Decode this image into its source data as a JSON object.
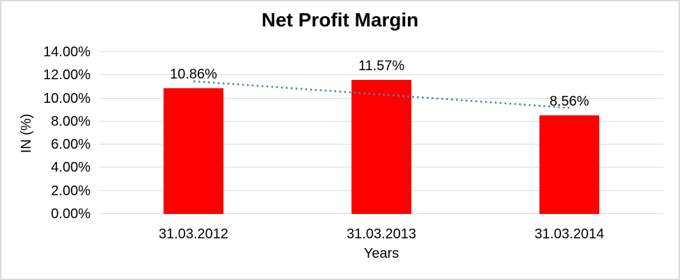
{
  "chart_data": {
    "type": "bar",
    "title": "Net Profit Margin",
    "xlabel": "Years",
    "ylabel": "IN (%)",
    "categories": [
      "31.03.2012",
      "31.03.2013",
      "31.03.2014"
    ],
    "values": [
      10.86,
      11.57,
      8.56
    ],
    "data_labels": [
      "10.86%",
      "11.57%",
      "8.56%"
    ],
    "ylim": [
      0,
      14
    ],
    "ytick_step": 2,
    "ytick_labels": [
      "0.00%",
      "2.00%",
      "4.00%",
      "6.00%",
      "8.00%",
      "10.00%",
      "12.00%",
      "14.00%"
    ],
    "grid": true,
    "legend_position": "none",
    "bar_color": "#ff0000",
    "gridline_color": "#d9d9d9",
    "text_color": "#000000",
    "background_color": "#ffffff",
    "border_color": "#d9d9d9",
    "trendline": {
      "type": "linear",
      "style": "dotted",
      "color": "#4f81bd",
      "start_value": 11.48,
      "end_value": 9.18
    }
  }
}
